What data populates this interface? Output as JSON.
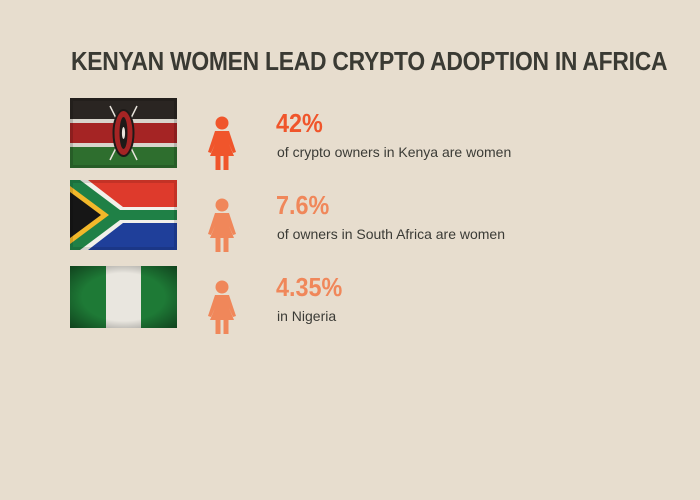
{
  "title": "KENYAN WOMEN LEAD CRYPTO ADOPTION IN AFRICA",
  "colors": {
    "background": "#e7ddce",
    "title": "#3a3a33",
    "accent_dark": "#f0552b",
    "accent_light": "#f0875a"
  },
  "rows": [
    {
      "flag": "kenya-flag",
      "icon": "woman-icon",
      "stat": "42%",
      "description": "of crypto owners in Kenya are women",
      "color": "#f0552b"
    },
    {
      "flag": "south-africa-flag",
      "icon": "woman-icon",
      "stat": "7.6%",
      "description": "of owners in South Africa are women",
      "color": "#f0875a"
    },
    {
      "flag": "nigeria-flag",
      "icon": "woman-icon",
      "stat": "4.35%",
      "description": "in Nigeria",
      "color": "#f0875a"
    }
  ]
}
